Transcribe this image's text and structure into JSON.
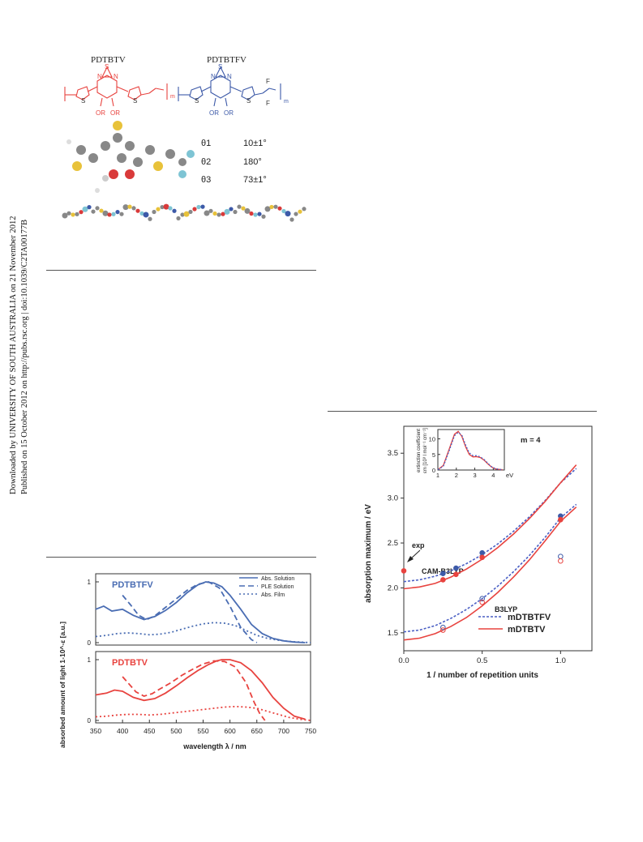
{
  "sidebar": {
    "line1": "Downloaded by UNIVERSITY OF SOUTH AUSTRALIA on 21 November 2012",
    "line2": "Published on 15 October 2012 on http://pubs.rsc.org | doi:10.1039/C2TA00177B"
  },
  "structure": {
    "name_left": "PDTBTV",
    "name_right": "PDTBTFV",
    "or_label": "OR",
    "m_label": "m",
    "angles": [
      {
        "label": "θ1",
        "value": "10±1°"
      },
      {
        "label": "θ2",
        "value": "180°"
      },
      {
        "label": "θ3",
        "value": "73±1°"
      }
    ],
    "colors": {
      "red": "#e8433f",
      "blue": "#3d5aa8"
    }
  },
  "chart_data": [
    {
      "type": "line",
      "ylabel": "absorbed amount of light  1-10^-ε  [a.u.]",
      "xlabel": "wavelength λ / nm",
      "xlim": [
        350,
        750
      ],
      "x_ticks": [
        "350",
        "400",
        "450",
        "500",
        "550",
        "600",
        "650",
        "700",
        "750"
      ],
      "legend": [
        "Abs. Solution",
        "PLE Solution",
        "Abs. Film"
      ],
      "panels": [
        {
          "name": "PDTBTFV",
          "color": "#4a6db3",
          "y_ticks": [
            "0",
            "1"
          ],
          "series": [
            {
              "name": "Abs. Solution",
              "x": [
                350,
                365,
                380,
                400,
                420,
                440,
                460,
                480,
                500,
                520,
                540,
                555,
                570,
                585,
                600,
                620,
                640,
                660,
                680,
                700,
                720,
                740
              ],
              "y": [
                0.55,
                0.6,
                0.52,
                0.55,
                0.45,
                0.38,
                0.43,
                0.53,
                0.66,
                0.82,
                0.95,
                1.0,
                0.98,
                0.92,
                0.78,
                0.55,
                0.3,
                0.15,
                0.07,
                0.03,
                0.01,
                0.0
              ]
            },
            {
              "name": "PLE Solution",
              "x": [
                400,
                415,
                430,
                445,
                460,
                480,
                500,
                520,
                540,
                560,
                580,
                600,
                620,
                640,
                650
              ],
              "y": [
                0.78,
                0.62,
                0.45,
                0.38,
                0.44,
                0.58,
                0.72,
                0.86,
                0.96,
                1.0,
                0.9,
                0.6,
                0.25,
                0.05,
                0.0
              ]
            },
            {
              "name": "Abs. Film",
              "x": [
                350,
                370,
                390,
                410,
                430,
                450,
                470,
                490,
                510,
                530,
                550,
                570,
                590,
                610,
                630,
                650,
                670,
                690,
                710,
                730,
                750
              ],
              "y": [
                0.1,
                0.12,
                0.15,
                0.16,
                0.15,
                0.13,
                0.14,
                0.17,
                0.22,
                0.27,
                0.31,
                0.33,
                0.32,
                0.28,
                0.2,
                0.12,
                0.07,
                0.04,
                0.02,
                0.01,
                0.0
              ]
            }
          ]
        },
        {
          "name": "PDTBTV",
          "color": "#e8433f",
          "y_ticks": [
            "0",
            "1"
          ],
          "series": [
            {
              "name": "Abs. Solution",
              "x": [
                350,
                370,
                385,
                400,
                420,
                440,
                460,
                480,
                500,
                520,
                540,
                560,
                575,
                585,
                600,
                620,
                640,
                660,
                680,
                700,
                720,
                740
              ],
              "y": [
                0.42,
                0.45,
                0.5,
                0.48,
                0.38,
                0.33,
                0.36,
                0.45,
                0.57,
                0.7,
                0.82,
                0.92,
                0.98,
                1.0,
                1.0,
                0.95,
                0.82,
                0.62,
                0.38,
                0.2,
                0.07,
                0.02
              ]
            },
            {
              "name": "PLE Solution",
              "x": [
                400,
                410,
                425,
                440,
                455,
                470,
                490,
                510,
                530,
                550,
                570,
                590,
                610,
                630,
                645,
                655,
                665
              ],
              "y": [
                0.72,
                0.62,
                0.47,
                0.4,
                0.44,
                0.52,
                0.62,
                0.74,
                0.84,
                0.93,
                0.98,
                0.97,
                0.88,
                0.62,
                0.3,
                0.12,
                0.0
              ]
            },
            {
              "name": "Abs. Film",
              "x": [
                350,
                370,
                390,
                410,
                430,
                450,
                470,
                490,
                510,
                530,
                550,
                570,
                590,
                610,
                630,
                650,
                670,
                690,
                710,
                730,
                750
              ],
              "y": [
                0.06,
                0.07,
                0.09,
                0.1,
                0.1,
                0.09,
                0.1,
                0.12,
                0.14,
                0.16,
                0.18,
                0.2,
                0.22,
                0.23,
                0.22,
                0.2,
                0.15,
                0.1,
                0.05,
                0.02,
                0.0
              ]
            }
          ]
        }
      ]
    },
    {
      "type": "line",
      "xlabel": "1 / number of repetition units",
      "ylabel": "absorption maximum / eV",
      "xlim": [
        0.0,
        1.2
      ],
      "ylim": [
        1.3,
        3.8
      ],
      "x_ticks": [
        "0.0",
        "0.5",
        "1.0"
      ],
      "y_ticks": [
        "1.5",
        "2.0",
        "2.5",
        "3.0",
        "3.5"
      ],
      "annotations": [
        "CAM-B3LYP",
        "B3LYP",
        "exp"
      ],
      "legend": [
        "mDTBTFV",
        "mDTBTV"
      ],
      "series": [
        {
          "name": "mDTBTFV CAM-B3LYP fit",
          "style": "dotted",
          "color": "#4a5fc4",
          "x": [
            0,
            0.1,
            0.2,
            0.3,
            0.4,
            0.5,
            0.6,
            0.7,
            0.8,
            0.9,
            1.0,
            1.1
          ],
          "y": [
            2.07,
            2.09,
            2.13,
            2.19,
            2.27,
            2.37,
            2.49,
            2.63,
            2.79,
            2.97,
            3.17,
            3.33
          ]
        },
        {
          "name": "mDTBTV CAM-B3LYP fit",
          "style": "solid",
          "color": "#e8433f",
          "x": [
            0,
            0.1,
            0.2,
            0.3,
            0.4,
            0.5,
            0.6,
            0.7,
            0.8,
            0.9,
            1.0,
            1.1
          ],
          "y": [
            1.99,
            2.01,
            2.05,
            2.12,
            2.21,
            2.32,
            2.45,
            2.6,
            2.77,
            2.96,
            3.17,
            3.37
          ]
        },
        {
          "name": "mDTBTFV B3LYP fit",
          "style": "dotted",
          "color": "#4a5fc4",
          "x": [
            0,
            0.1,
            0.2,
            0.3,
            0.4,
            0.5,
            0.6,
            0.7,
            0.8,
            0.9,
            1.0,
            1.1
          ],
          "y": [
            1.51,
            1.53,
            1.58,
            1.66,
            1.76,
            1.88,
            2.02,
            2.18,
            2.36,
            2.56,
            2.78,
            2.93
          ]
        },
        {
          "name": "mDTBTV B3LYP fit",
          "style": "solid",
          "color": "#e8433f",
          "x": [
            0,
            0.1,
            0.2,
            0.3,
            0.4,
            0.5,
            0.6,
            0.7,
            0.8,
            0.9,
            1.0,
            1.1
          ],
          "y": [
            1.42,
            1.44,
            1.49,
            1.57,
            1.67,
            1.8,
            1.95,
            2.12,
            2.31,
            2.52,
            2.74,
            2.9
          ]
        }
      ],
      "points": [
        {
          "x": 0.25,
          "y": 2.16,
          "color": "#3d5aa8",
          "filled": true
        },
        {
          "x": 0.333,
          "y": 2.22,
          "color": "#3d5aa8",
          "filled": true
        },
        {
          "x": 0.5,
          "y": 2.39,
          "color": "#3d5aa8",
          "filled": true
        },
        {
          "x": 1.0,
          "y": 2.8,
          "color": "#3d5aa8",
          "filled": true
        },
        {
          "x": 0.25,
          "y": 2.09,
          "color": "#e8433f",
          "filled": true
        },
        {
          "x": 0.333,
          "y": 2.15,
          "color": "#e8433f",
          "filled": true
        },
        {
          "x": 0.5,
          "y": 2.34,
          "color": "#e8433f",
          "filled": true
        },
        {
          "x": 1.0,
          "y": 2.76,
          "color": "#e8433f",
          "filled": true
        },
        {
          "x": 0.0,
          "y": 2.19,
          "color": "#e8433f",
          "filled": true
        },
        {
          "x": 0.25,
          "y": 1.56,
          "color": "#3d5aa8",
          "filled": false
        },
        {
          "x": 0.5,
          "y": 1.88,
          "color": "#3d5aa8",
          "filled": false
        },
        {
          "x": 1.0,
          "y": 2.35,
          "color": "#3d5aa8",
          "filled": false
        },
        {
          "x": 0.25,
          "y": 1.53,
          "color": "#e8433f",
          "filled": false
        },
        {
          "x": 0.5,
          "y": 1.84,
          "color": "#e8433f",
          "filled": false
        },
        {
          "x": 1.0,
          "y": 2.3,
          "color": "#e8433f",
          "filled": false
        }
      ],
      "inset": {
        "label": "m = 4",
        "xlabel": "eV",
        "ylabel_line1": "extinction coefficient",
        "ylabel_line2": "εm [10³ l mol⁻¹ cm⁻¹]",
        "x_ticks": [
          "1",
          "2",
          "3",
          "4"
        ],
        "y_ticks": [
          "0",
          "5",
          "10"
        ],
        "xlim": [
          1.0,
          4.6
        ],
        "ylim": [
          0,
          13
        ],
        "series": [
          {
            "color": "#e8433f",
            "style": "solid",
            "x": [
              1.0,
              1.3,
              1.6,
              1.9,
              2.1,
              2.3,
              2.5,
              2.7,
              2.9,
              3.1,
              3.3,
              3.5,
              3.7,
              3.9,
              4.1,
              4.3,
              4.5
            ],
            "y": [
              0.1,
              1.5,
              6.5,
              11.5,
              12.4,
              10.8,
              7.5,
              5.0,
              4.2,
              4.3,
              4.0,
              3.2,
              2.0,
              1.0,
              0.4,
              0.2,
              0.1
            ]
          },
          {
            "color": "#4a5fc4",
            "style": "dotted",
            "x": [
              1.0,
              1.3,
              1.6,
              1.9,
              2.1,
              2.3,
              2.5,
              2.7,
              2.9,
              3.1,
              3.3,
              3.5,
              3.7,
              3.9,
              4.1,
              4.3,
              4.5
            ],
            "y": [
              0.1,
              1.2,
              6.0,
              11.0,
              12.1,
              11.2,
              8.0,
              5.5,
              4.6,
              4.6,
              4.2,
              3.4,
              2.2,
              1.1,
              0.5,
              0.2,
              0.1
            ]
          }
        ]
      }
    }
  ]
}
